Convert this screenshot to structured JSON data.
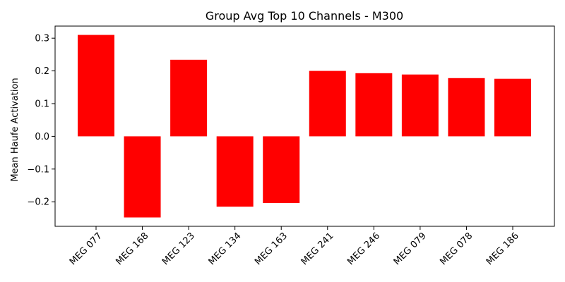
{
  "chart_data": {
    "type": "bar",
    "title": "Group Avg Top 10 Channels - M300",
    "xlabel": "",
    "ylabel": "Mean Haufe Activation",
    "categories": [
      "MEG 077",
      "MEG 168",
      "MEG 123",
      "MEG 134",
      "MEG 163",
      "MEG 241",
      "MEG 246",
      "MEG 079",
      "MEG 078",
      "MEG 186"
    ],
    "values": [
      0.31,
      -0.248,
      0.234,
      -0.215,
      -0.204,
      0.2,
      0.193,
      0.189,
      0.178,
      0.176
    ],
    "ylim": [
      -0.275,
      0.337
    ],
    "yticks": [
      -0.2,
      -0.1,
      0.0,
      0.1,
      0.2,
      0.3
    ],
    "ytick_labels": [
      "−0.2",
      "−0.1",
      "0.0",
      "0.1",
      "0.2",
      "0.3"
    ],
    "bar_color": "#ff0000",
    "grid": false,
    "legend": "none"
  }
}
